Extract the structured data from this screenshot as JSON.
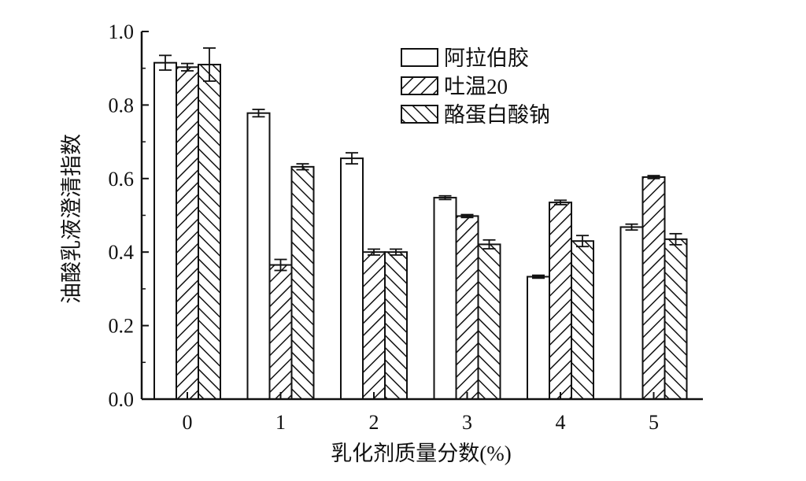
{
  "chart_data": {
    "type": "bar",
    "xlabel": "乳化剂质量分数(%)",
    "ylabel": "油酸乳液澄清指数",
    "categories": [
      "0",
      "1",
      "2",
      "3",
      "4",
      "5"
    ],
    "ylim": [
      0.0,
      1.0
    ],
    "yticks": [
      "0.0",
      "0.2",
      "0.4",
      "0.6",
      "0.8",
      "1.0"
    ],
    "legend_position": "top-right",
    "series": [
      {
        "name": "阿拉伯胶",
        "pattern": "none",
        "values": [
          0.915,
          0.778,
          0.655,
          0.548,
          0.333,
          0.468
        ],
        "errors": [
          0.02,
          0.01,
          0.015,
          0.005,
          0.004,
          0.008
        ]
      },
      {
        "name": "吐温20",
        "pattern": "hatch-forward",
        "values": [
          0.903,
          0.365,
          0.4,
          0.498,
          0.535,
          0.604
        ],
        "errors": [
          0.01,
          0.015,
          0.008,
          0.004,
          0.006,
          0.004
        ]
      },
      {
        "name": "酪蛋白酸钠",
        "pattern": "hatch-backward",
        "values": [
          0.91,
          0.632,
          0.4,
          0.421,
          0.43,
          0.435
        ],
        "errors": [
          0.045,
          0.008,
          0.008,
          0.012,
          0.015,
          0.015
        ]
      }
    ]
  }
}
